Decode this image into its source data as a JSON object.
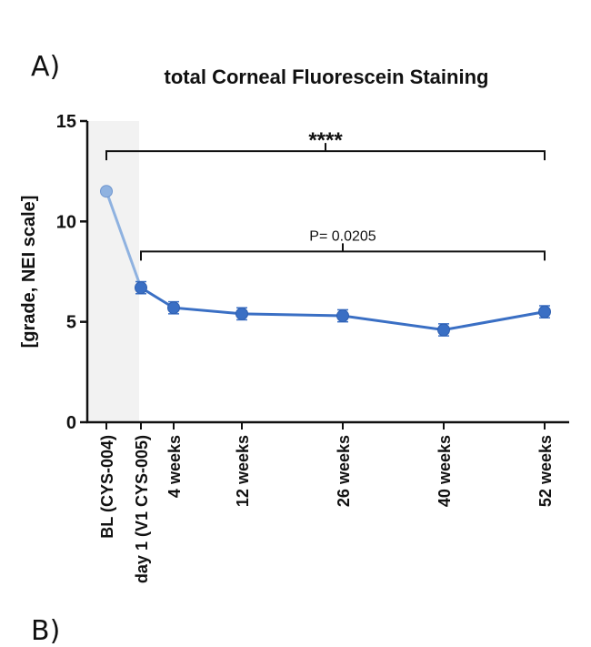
{
  "panel_label": "A)",
  "next_panel_label": "B)",
  "chart_data": {
    "type": "line",
    "title": "total Corneal Fluorescein Staining",
    "ylabel": "[grade, NEI scale]",
    "xlabel": "",
    "ylim": [
      0,
      15
    ],
    "yticks": [
      0,
      5,
      10,
      15
    ],
    "grid": false,
    "baseline_shaded": true,
    "categories": [
      "BL (CYS-004)",
      "day 1 (V1 CYS-005)",
      "4 weeks",
      "12 weeks",
      "26 weeks",
      "40 weeks",
      "52 weeks"
    ],
    "x_weeks": [
      -1,
      0,
      4,
      12,
      26,
      40,
      52
    ],
    "values": [
      11.5,
      6.7,
      5.7,
      5.4,
      5.3,
      4.6,
      5.5
    ],
    "errors": [
      0.1,
      0.3,
      0.3,
      0.3,
      0.3,
      0.3,
      0.3
    ],
    "color": "#3a6fc4",
    "baseline_color": "#8fb2e0",
    "annotations": [
      {
        "text": "****",
        "from": "BL (CYS-004)",
        "to": "52 weeks",
        "y": 13.5
      },
      {
        "text": "P= 0.0205",
        "from": "day 1 (V1 CYS-005)",
        "to": "52 weeks",
        "y": 8.5
      }
    ]
  }
}
